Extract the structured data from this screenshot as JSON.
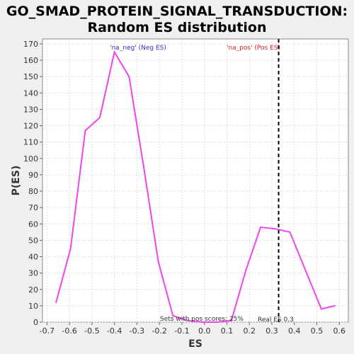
{
  "title_line1": "GO_SMAD_PROTEIN_SIGNAL_TRANSDUCTION:",
  "title_line2": "Random ES distribution",
  "colors": {
    "background": "#f0f0f0",
    "plot_background": "#ffffff",
    "line": "#ee44ee",
    "neg_label": "#3333cc",
    "pos_label": "#dd2222",
    "grid": "#dddddd",
    "real_es_line": "#000000"
  },
  "chart_data": {
    "type": "line",
    "title": "GO_SMAD_PROTEIN_SIGNAL_TRANSDUCTION: Random ES distribution",
    "xlabel": "ES",
    "ylabel": "P(ES)",
    "xlim": [
      -0.72,
      0.64
    ],
    "ylim": [
      0,
      173
    ],
    "xticks": [
      -0.7,
      -0.6,
      -0.5,
      -0.4,
      -0.3,
      -0.2,
      -0.1,
      0.0,
      0.1,
      0.2,
      0.3,
      0.4,
      0.5,
      0.6
    ],
    "xtick_labels": [
      "-0.7",
      "-0.6",
      "-0.5",
      "-0.4",
      "-0.3",
      "-0.2",
      "-0.1",
      "0.0",
      "0.1",
      "0.2",
      "0.3",
      "0.4",
      "0.5",
      "0.6"
    ],
    "yticks": [
      0,
      10,
      20,
      30,
      40,
      50,
      60,
      70,
      80,
      90,
      100,
      110,
      120,
      130,
      140,
      150,
      160,
      170
    ],
    "grid": true,
    "series": [
      {
        "x": [
          -0.66,
          -0.595,
          -0.53,
          -0.465,
          -0.4,
          -0.335,
          -0.27,
          -0.205,
          -0.14,
          -0.075,
          -0.01,
          0.055,
          0.12,
          0.185,
          0.25,
          0.315,
          0.38,
          0.52,
          0.58
        ],
        "y": [
          12,
          45,
          117,
          125,
          165,
          150,
          95,
          37,
          4,
          1,
          0,
          0,
          1,
          32,
          58,
          57,
          55,
          8,
          10
        ]
      }
    ],
    "real_es": 0.33,
    "annotations": {
      "neg": "'na_neg' (Neg ES)",
      "pos": "'na_pos' (Pos ES)",
      "sets_pos": "Sets with pos scores: 25%",
      "real_es": "Real ES 0.3"
    }
  }
}
